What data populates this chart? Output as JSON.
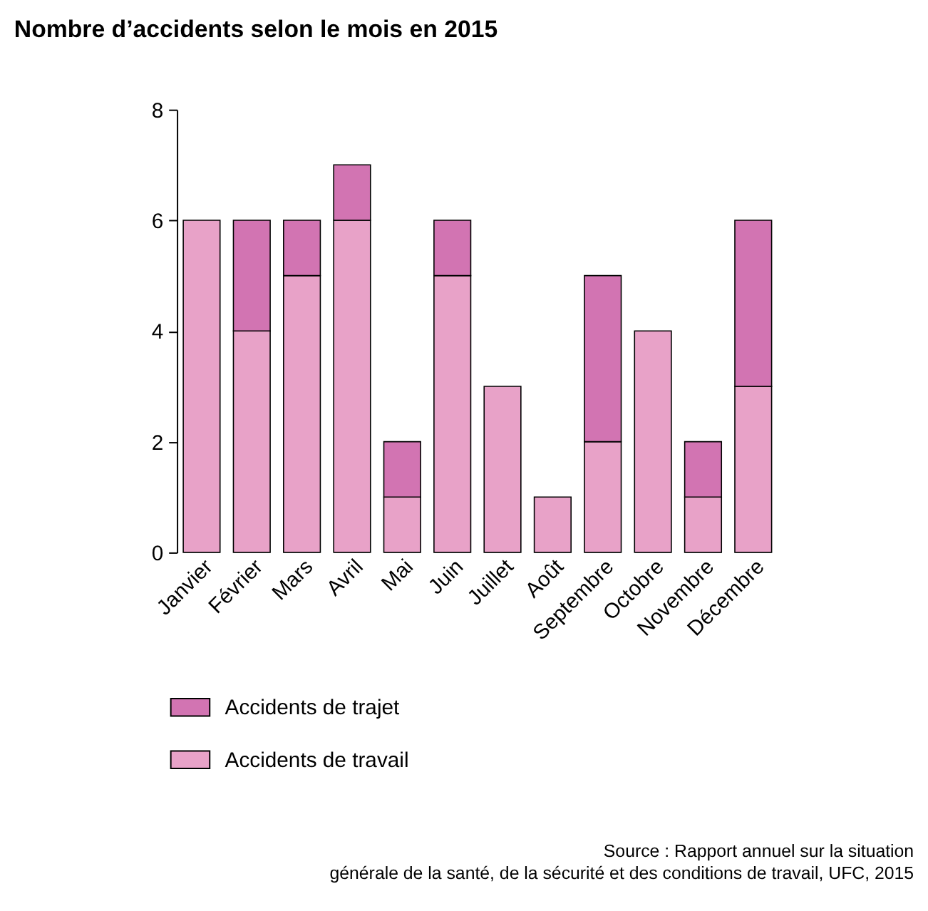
{
  "chart_data": {
    "type": "bar",
    "title": "Nombre d’accidents selon le mois en 2015",
    "stacked": true,
    "categories": [
      "Janvier",
      "Février",
      "Mars",
      "Avril",
      "Mai",
      "Juin",
      "Juillet",
      "Août",
      "Septembre",
      "Octobre",
      "Novembre",
      "Décembre"
    ],
    "series": [
      {
        "name": "Accidents de travail",
        "color": "#e8a2c8",
        "values": [
          6,
          4,
          5,
          6,
          1,
          5,
          3,
          1,
          2,
          4,
          1,
          3
        ]
      },
      {
        "name": "Accidents de trajet",
        "color": "#d274b2",
        "values": [
          null,
          2,
          1,
          1,
          1,
          1,
          null,
          null,
          3,
          null,
          1,
          3
        ]
      }
    ],
    "ylim": [
      0,
      8
    ],
    "yticks": [
      0,
      2,
      4,
      6,
      8
    ],
    "grid": false,
    "legend": "bottom left",
    "annotations": [
      "Source : Rapport annuel sur la situation",
      "générale de la santé, de la sécurité et des conditions de travail, UFC, 2015"
    ]
  }
}
